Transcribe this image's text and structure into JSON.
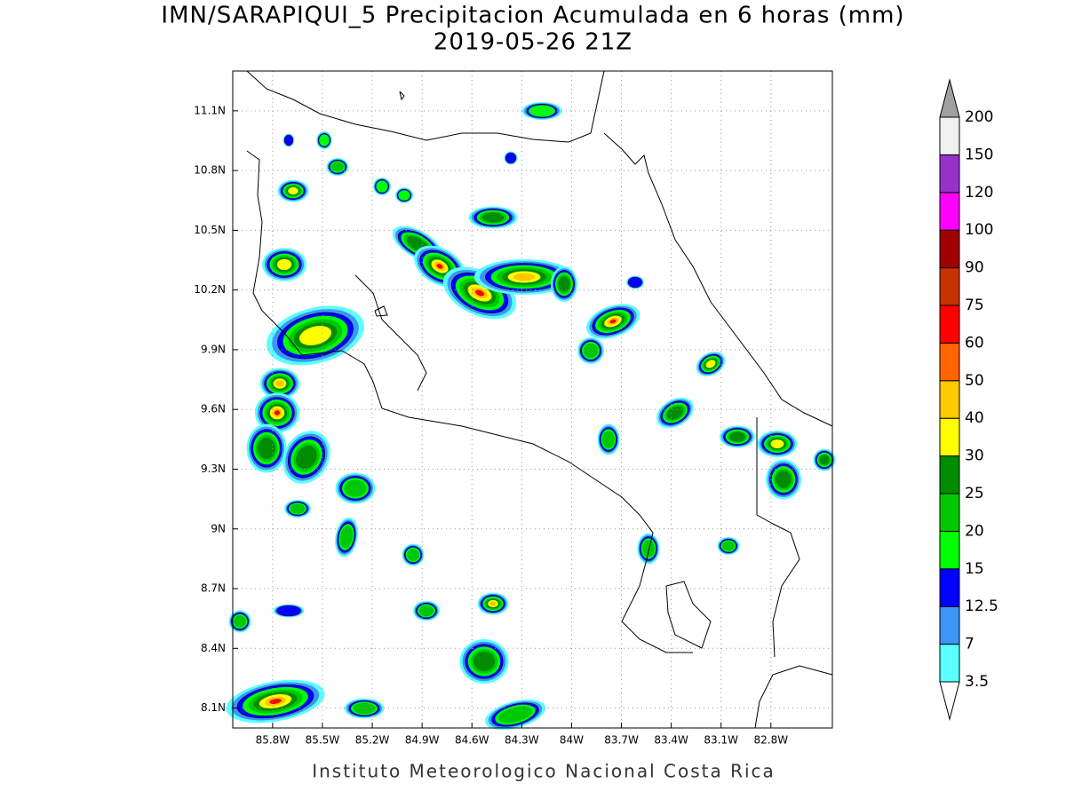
{
  "title": [
    "IMN/SARAPIQUI_5 Precipitacion Acumulada en 6 horas (mm)",
    "2019-05-26 21Z"
  ],
  "map": {
    "xlim": [
      -86.04,
      -82.43
    ],
    "ylim": [
      8.0,
      11.3
    ],
    "xticks": [
      {
        "value": -85.8,
        "label": "85.8W"
      },
      {
        "value": -85.5,
        "label": "85.5W"
      },
      {
        "value": -85.2,
        "label": "85.2W"
      },
      {
        "value": -84.9,
        "label": "84.9W"
      },
      {
        "value": -84.6,
        "label": "84.6W"
      },
      {
        "value": -84.3,
        "label": "84.3W"
      },
      {
        "value": -84.0,
        "label": "84W"
      },
      {
        "value": -83.7,
        "label": "83.7W"
      },
      {
        "value": -83.4,
        "label": "83.4W"
      },
      {
        "value": -83.1,
        "label": "83.1W"
      },
      {
        "value": -82.8,
        "label": "82.8W"
      }
    ],
    "yticks": [
      {
        "value": 8.1,
        "label": "8.1N"
      },
      {
        "value": 8.4,
        "label": "8.4N"
      },
      {
        "value": 8.7,
        "label": "8.7N"
      },
      {
        "value": 9.0,
        "label": "9N"
      },
      {
        "value": 9.3,
        "label": "9.3N"
      },
      {
        "value": 9.6,
        "label": "9.6N"
      },
      {
        "value": 9.9,
        "label": "9.9N"
      },
      {
        "value": 10.2,
        "label": "10.2N"
      },
      {
        "value": 10.5,
        "label": "10.5N"
      },
      {
        "value": 10.8,
        "label": "10.8N"
      },
      {
        "value": 11.1,
        "label": "11.1N"
      }
    ],
    "grid": true
  },
  "colorbar": {
    "levels": [
      3.5,
      7,
      12.5,
      15,
      20,
      25,
      30,
      40,
      50,
      60,
      75,
      90,
      100,
      120,
      150,
      200
    ],
    "colors": [
      "#ffffff",
      "#5affff",
      "#3c96f5",
      "#0000ff",
      "#00ff00",
      "#00c800",
      "#008c00",
      "#ffff00",
      "#ffc800",
      "#ff6400",
      "#ff0000",
      "#c83200",
      "#a00000",
      "#ff00ff",
      "#9632c8",
      "#f0f0f0",
      "#a0a0a0"
    ]
  },
  "footer": "Instituto Meteorologico Nacional Costa Rica"
}
